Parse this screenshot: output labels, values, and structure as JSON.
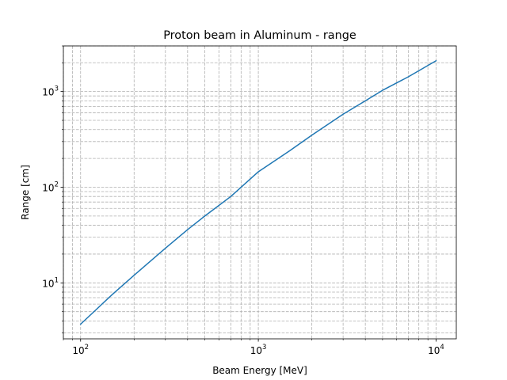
{
  "chart_data": {
    "type": "line",
    "title": "Proton beam in Aluminum - range",
    "xlabel": "Beam Energy [MeV]",
    "ylabel": "Range [cm]",
    "xscale": "log",
    "yscale": "log",
    "xlim": [
      80,
      13000
    ],
    "ylim": [
      2.6,
      3000
    ],
    "grid": true,
    "grid_which": "both",
    "grid_style": "dashed",
    "legend": "none",
    "x_ticks": [
      {
        "value": 100,
        "base": "10",
        "exp": "2"
      },
      {
        "value": 1000,
        "base": "10",
        "exp": "3"
      },
      {
        "value": 10000,
        "base": "10",
        "exp": "4"
      }
    ],
    "y_ticks": [
      {
        "value": 10,
        "base": "10",
        "exp": "1"
      },
      {
        "value": 100,
        "base": "10",
        "exp": "2"
      },
      {
        "value": 1000,
        "base": "10",
        "exp": "3"
      }
    ],
    "series": [
      {
        "color": "#1f77b4",
        "x": [
          100,
          150,
          200,
          300,
          400,
          500,
          700,
          1000,
          1500,
          2000,
          3000,
          4000,
          5000,
          7000,
          10000
        ],
        "y": [
          3.7,
          7.5,
          12.0,
          23.0,
          36.0,
          50.0,
          80.0,
          145.0,
          240.0,
          350.0,
          580.0,
          800.0,
          1030.0,
          1430.0,
          2100.0
        ]
      }
    ]
  }
}
